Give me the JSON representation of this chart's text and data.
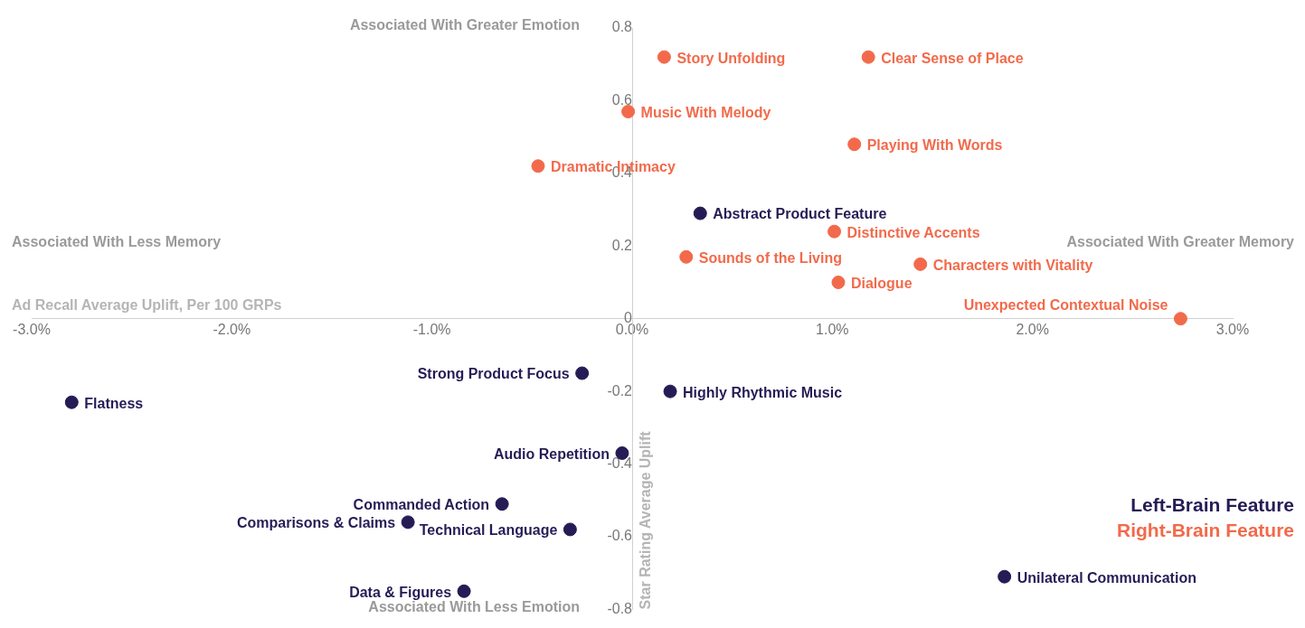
{
  "chart_data": {
    "type": "scatter",
    "xlabel": "Ad Recall Average Uplift, Per 100 GRPs",
    "ylabel": "Star Rating Average Uplift",
    "xlim": [
      -3,
      3
    ],
    "xticks": [
      {
        "value": -3,
        "label": "-3.0%"
      },
      {
        "value": -2,
        "label": "-2.0%"
      },
      {
        "value": -1,
        "label": "-1.0%"
      },
      {
        "value": 0,
        "label": "0.0%"
      },
      {
        "value": 1,
        "label": "1.0%"
      },
      {
        "value": 2,
        "label": "2.0%"
      },
      {
        "value": 3,
        "label": "3.0%"
      }
    ],
    "ylim": [
      -0.8,
      0.8
    ],
    "yticks": [
      -0.8,
      -0.6,
      -0.4,
      -0.2,
      0,
      0.2,
      0.4,
      0.6,
      0.8
    ],
    "grid": false,
    "legend": "bottom right",
    "marker": "circle",
    "series": [
      {
        "name": "Left-Brain Feature",
        "color": "#251c55",
        "x": [
          0.34,
          -0.25,
          0.19,
          -2.8,
          -0.05,
          -0.65,
          -1.12,
          -0.31,
          -0.84,
          1.86
        ],
        "values": [
          0.29,
          -0.15,
          -0.2,
          -0.23,
          -0.37,
          -0.51,
          -0.56,
          -0.58,
          -0.75,
          -0.71
        ]
      },
      {
        "name": "Right-Brain Feature",
        "color": "#f26a4b",
        "x": [
          0.16,
          1.18,
          -0.02,
          1.11,
          -0.47,
          1.01,
          0.27,
          1.44,
          1.03,
          2.74
        ],
        "values": [
          0.72,
          0.72,
          0.57,
          0.48,
          0.42,
          0.24,
          0.17,
          0.15,
          0.1,
          0
        ]
      }
    ],
    "annotations": [
      "Associated With Greater Emotion",
      "Associated With Less Emotion",
      "Associated With Less Memory",
      "Associated With Greater Memory",
      {
        "text": "Abstract Product Feature",
        "x": 0.34,
        "y": 0.29
      },
      {
        "text": "Strong Product Focus",
        "x": -0.25,
        "y": -0.15
      },
      {
        "text": "Highly Rhythmic Music",
        "x": 0.19,
        "y": -0.2
      },
      {
        "text": "Flatness",
        "x": -2.8,
        "y": -0.23
      },
      {
        "text": "Audio Repetition",
        "x": -0.05,
        "y": -0.37
      },
      {
        "text": "Commanded Action",
        "x": -0.65,
        "y": -0.51
      },
      {
        "text": "Comparisons & Claims",
        "x": -1.12,
        "y": -0.56
      },
      {
        "text": "Technical Language",
        "x": -0.31,
        "y": -0.58
      },
      {
        "text": "Data & Figures",
        "x": -0.84,
        "y": -0.75
      },
      {
        "text": "Unilateral Communication",
        "x": 1.86,
        "y": -0.71
      },
      {
        "text": "Story Unfolding",
        "x": 0.16,
        "y": 0.72
      },
      {
        "text": "Clear Sense of Place",
        "x": 1.18,
        "y": 0.72
      },
      {
        "text": "Music With Melody",
        "x": -0.02,
        "y": 0.57
      },
      {
        "text": "Playing With Words",
        "x": 1.11,
        "y": 0.48
      },
      {
        "text": "Dramatic Intimacy",
        "x": -0.47,
        "y": 0.42
      },
      {
        "text": "Distinctive Accents",
        "x": 1.01,
        "y": 0.24
      },
      {
        "text": "Sounds of the Living",
        "x": 0.27,
        "y": 0.17
      },
      {
        "text": "Characters with Vitality",
        "x": 1.44,
        "y": 0.15
      },
      {
        "text": "Dialogue",
        "x": 1.03,
        "y": 0.1
      },
      {
        "text": "Unexpected Contextual Noise",
        "x": 2.74,
        "y": 0
      }
    ]
  }
}
